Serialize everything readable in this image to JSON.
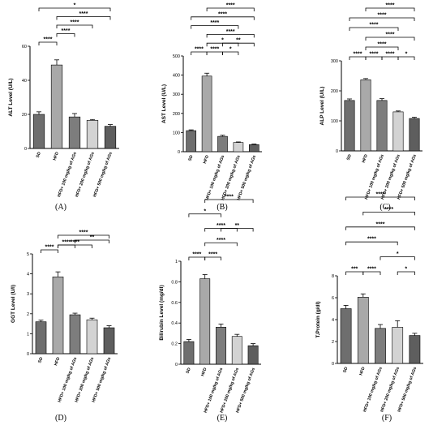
{
  "chart_data": [
    {
      "panel": "(A)",
      "type": "bar",
      "ylabel": "ALT Level (U/L)",
      "categories": [
        "SD",
        "HFD",
        "HFD+ 100 mg/kg of AGs",
        "HFD+ 200 mg/kg of AGs",
        "HFD+ 500 mg/kg of AGs"
      ],
      "values": [
        20,
        49,
        18.5,
        16.5,
        13
      ],
      "errors": [
        1.5,
        3,
        2,
        0.5,
        1
      ],
      "ylim": [
        0,
        60
      ],
      "yticks": [
        0,
        20,
        40,
        60
      ],
      "colors": [
        "#6e6e6e",
        "#a9a9a9",
        "#7d7d7d",
        "#d3d3d3",
        "#5e5e5e"
      ],
      "comparisons": [
        {
          "i": 0,
          "j": 1,
          "label": "****",
          "level": 0
        },
        {
          "i": 1,
          "j": 2,
          "label": "****",
          "level": 1
        },
        {
          "i": 1,
          "j": 3,
          "label": "****",
          "level": 2
        },
        {
          "i": 1,
          "j": 4,
          "label": "****",
          "level": 3
        },
        {
          "i": 0,
          "j": 4,
          "label": "*",
          "level": 4
        }
      ]
    },
    {
      "panel": "(B)",
      "type": "bar",
      "ylabel": "AST Level (U/L)",
      "categories": [
        "SD",
        "HFD",
        "HFD+ 100 mg/kg of AGs",
        "HFD+ 200 mg/kg of AGs",
        "HFD+ 500 mg/kg of AGs"
      ],
      "values": [
        110,
        395,
        80,
        48,
        37
      ],
      "errors": [
        4,
        15,
        6,
        3,
        3
      ],
      "ylim": [
        0,
        500
      ],
      "yticks": [
        0,
        100,
        200,
        300,
        400,
        500
      ],
      "colors": [
        "#6e6e6e",
        "#a9a9a9",
        "#7d7d7d",
        "#d3d3d3",
        "#5e5e5e"
      ],
      "comparisons": [
        {
          "i": 0,
          "j": 1,
          "label": "****",
          "level": 0
        },
        {
          "i": 1,
          "j": 2,
          "label": "****",
          "level": 0
        },
        {
          "i": 2,
          "j": 3,
          "label": "*",
          "level": 0
        },
        {
          "i": 1,
          "j": 3,
          "label": "*",
          "level": 1
        },
        {
          "i": 2,
          "j": 4,
          "label": "**",
          "level": 1
        },
        {
          "i": 1,
          "j": 4,
          "label": "****",
          "level": 2
        },
        {
          "i": 0,
          "j": 3,
          "label": "****",
          "level": 3
        },
        {
          "i": 0,
          "j": 4,
          "label": "****",
          "level": 4
        },
        {
          "i": 1,
          "j": 4,
          "label": "****",
          "level": 5
        }
      ]
    },
    {
      "panel": "(C)",
      "type": "bar",
      "ylabel": "ALP Level (U/L)",
      "categories": [
        "SD",
        "HFD",
        "HFD+ 100 mg/kg of AGs",
        "HFD+ 200 mg/kg of AGs",
        "HFD+ 500 mg/kg of AGs"
      ],
      "values": [
        168,
        237,
        168,
        130,
        108
      ],
      "errors": [
        5,
        4,
        6,
        3,
        4
      ],
      "ylim": [
        0,
        300
      ],
      "yticks": [
        0,
        100,
        200,
        300
      ],
      "colors": [
        "#6e6e6e",
        "#a9a9a9",
        "#7d7d7d",
        "#d3d3d3",
        "#5e5e5e"
      ],
      "comparisons": [
        {
          "i": 0,
          "j": 1,
          "label": "****",
          "level": 0
        },
        {
          "i": 1,
          "j": 2,
          "label": "****",
          "level": 0
        },
        {
          "i": 2,
          "j": 3,
          "label": "****",
          "level": 0
        },
        {
          "i": 3,
          "j": 4,
          "label": "*",
          "level": 0
        },
        {
          "i": 1,
          "j": 3,
          "label": "****",
          "level": 1
        },
        {
          "i": 1,
          "j": 4,
          "label": "****",
          "level": 2
        },
        {
          "i": 0,
          "j": 3,
          "label": "****",
          "level": 3
        },
        {
          "i": 0,
          "j": 4,
          "label": "****",
          "level": 4
        },
        {
          "i": 1,
          "j": 4,
          "label": "****",
          "level": 5
        }
      ]
    },
    {
      "panel": "(D)",
      "type": "bar",
      "ylabel": "GGT Level (U/l)",
      "categories": [
        "SD",
        "HFD",
        "HFD+ 100 mg/kg of AGs",
        "HFD+ 200 mg/kg of AGs",
        "HFD+ 500 mg/kg of AGs"
      ],
      "values": [
        1.6,
        3.85,
        1.95,
        1.7,
        1.3
      ],
      "errors": [
        0.08,
        0.25,
        0.08,
        0.08,
        0.1
      ],
      "ylim": [
        0,
        5
      ],
      "yticks": [
        0,
        1,
        2,
        3,
        4,
        5
      ],
      "colors": [
        "#6e6e6e",
        "#a9a9a9",
        "#7d7d7d",
        "#d3d3d3",
        "#5e5e5e"
      ],
      "comparisons": [
        {
          "i": 0,
          "j": 1,
          "label": "****",
          "level": 0
        },
        {
          "i": 1,
          "j": 2,
          "label": "****",
          "level": 1
        },
        {
          "i": 1,
          "j": 3,
          "label": "****",
          "level": 1
        },
        {
          "i": 2,
          "j": 4,
          "label": "**",
          "level": 2
        },
        {
          "i": 1,
          "j": 4,
          "label": "****",
          "level": 3
        }
      ]
    },
    {
      "panel": "(E)",
      "type": "bar",
      "ylabel": "Bilirubin Level (mg/dl)",
      "categories": [
        "SD",
        "HFD",
        "HFD+ 100 mg/kg of AGs",
        "HFD+ 200 mg/kg of AGs",
        "HFD+ 500 mg/kg of AGs"
      ],
      "values": [
        0.22,
        0.83,
        0.36,
        0.27,
        0.18
      ],
      "errors": [
        0.02,
        0.04,
        0.03,
        0.02,
        0.02
      ],
      "ylim": [
        0,
        1.0
      ],
      "yticks": [
        0.0,
        0.2,
        0.4,
        0.6,
        0.8,
        1.0
      ],
      "colors": [
        "#6e6e6e",
        "#a9a9a9",
        "#7d7d7d",
        "#d3d3d3",
        "#5e5e5e"
      ],
      "comparisons": [
        {
          "i": 0,
          "j": 1,
          "label": "****",
          "level": 0
        },
        {
          "i": 1,
          "j": 2,
          "label": "****",
          "level": 0
        },
        {
          "i": 1,
          "j": 3,
          "label": "****",
          "level": 1
        },
        {
          "i": 2,
          "j": 4,
          "label": "**",
          "level": 2
        },
        {
          "i": 1,
          "j": 3,
          "label": "****",
          "level": 2
        },
        {
          "i": 0,
          "j": 2,
          "label": "*",
          "level": 3
        },
        {
          "i": 1,
          "j": 4,
          "label": "****",
          "level": 4
        }
      ]
    },
    {
      "panel": "(F)",
      "type": "bar",
      "ylabel": "T.Protein (g/dl)",
      "categories": [
        "SD",
        "HFD",
        "HFD+ 100 mg/kg of AGs",
        "HFD+ 200 mg/kg of AGs",
        "HFD+ 500 mg/kg of AGs"
      ],
      "values": [
        5.0,
        6.05,
        3.2,
        3.3,
        2.55
      ],
      "errors": [
        0.3,
        0.3,
        0.35,
        0.6,
        0.2
      ],
      "ylim": [
        0,
        8
      ],
      "yticks": [
        0,
        2,
        4,
        6,
        8
      ],
      "colors": [
        "#6e6e6e",
        "#a9a9a9",
        "#7d7d7d",
        "#d3d3d3",
        "#5e5e5e"
      ],
      "comparisons": [
        {
          "i": 0,
          "j": 1,
          "label": "***",
          "level": 0
        },
        {
          "i": 1,
          "j": 2,
          "label": "****",
          "level": 0
        },
        {
          "i": 3,
          "j": 4,
          "label": "*",
          "level": 0
        },
        {
          "i": 2,
          "j": 4,
          "label": "*",
          "level": 1
        },
        {
          "i": 0,
          "j": 3,
          "label": "****",
          "level": 2
        },
        {
          "i": 0,
          "j": 4,
          "label": "****",
          "level": 3
        },
        {
          "i": 1,
          "j": 4,
          "label": "****",
          "level": 4
        },
        {
          "i": 0,
          "j": 4,
          "label": "****",
          "level": 5
        }
      ]
    }
  ]
}
